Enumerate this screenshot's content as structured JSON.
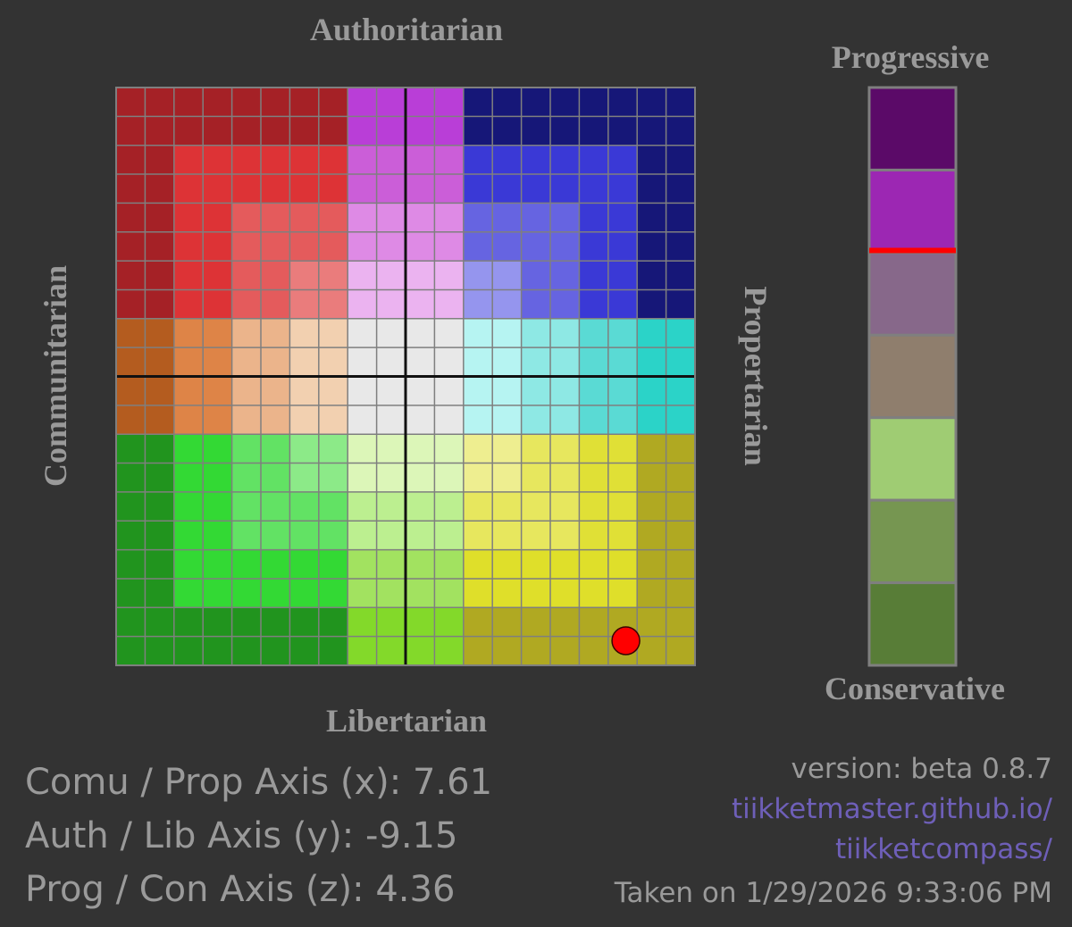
{
  "labels": {
    "top": "Authoritarian",
    "bottom": "Libertarian",
    "left": "Communitarian",
    "right": "Propertarian",
    "scale_top": "Progressive",
    "scale_bottom": "Conservative"
  },
  "chart_data": [
    {
      "type": "scatter",
      "title": "",
      "xlabel_left": "Communitarian",
      "xlabel_right": "Propertarian",
      "ylabel_top": "Authoritarian",
      "ylabel_bottom": "Libertarian",
      "xlim": [
        -10,
        10
      ],
      "ylim": [
        -10,
        10
      ],
      "grid": true,
      "grid_divisions": 20,
      "point": {
        "x": 7.61,
        "y": -9.15,
        "color": "#ff0000"
      },
      "zone_colors": [
        [
          "#a52126",
          "#a52126",
          "#a52126",
          "#a52126",
          "#a52126",
          "#a52126",
          "#a52126",
          "#a52126",
          "#b93ed7",
          "#b93ed7",
          "#b93ed7",
          "#b93ed7",
          "#161778",
          "#161778",
          "#161778",
          "#161778",
          "#161778",
          "#161778",
          "#161778",
          "#161778"
        ],
        [
          "#a52126",
          "#a52126",
          "#a52126",
          "#a52126",
          "#a52126",
          "#a52126",
          "#a52126",
          "#a52126",
          "#b93ed7",
          "#b93ed7",
          "#b93ed7",
          "#b93ed7",
          "#161778",
          "#161778",
          "#161778",
          "#161778",
          "#161778",
          "#161778",
          "#161778",
          "#161778"
        ],
        [
          "#a52126",
          "#a52126",
          "#dd3336",
          "#dd3336",
          "#dd3336",
          "#dd3336",
          "#dd3336",
          "#dd3336",
          "#cb5ed8",
          "#cb5ed8",
          "#cb5ed8",
          "#cb5ed8",
          "#3a39d6",
          "#3a39d6",
          "#3a39d6",
          "#3a39d6",
          "#3a39d6",
          "#3a39d6",
          "#161778",
          "#161778"
        ],
        [
          "#a52126",
          "#a52126",
          "#dd3336",
          "#dd3336",
          "#dd3336",
          "#dd3336",
          "#dd3336",
          "#dd3336",
          "#cb5ed8",
          "#cb5ed8",
          "#cb5ed8",
          "#cb5ed8",
          "#3a39d6",
          "#3a39d6",
          "#3a39d6",
          "#3a39d6",
          "#3a39d6",
          "#3a39d6",
          "#161778",
          "#161778"
        ],
        [
          "#a52126",
          "#a52126",
          "#dd3336",
          "#dd3336",
          "#e45b5c",
          "#e45b5c",
          "#e45b5c",
          "#e45b5c",
          "#de8ae5",
          "#de8ae5",
          "#de8ae5",
          "#de8ae5",
          "#6664e1",
          "#6664e1",
          "#6664e1",
          "#6664e1",
          "#3a39d6",
          "#3a39d6",
          "#161778",
          "#161778"
        ],
        [
          "#a52126",
          "#a52126",
          "#dd3336",
          "#dd3336",
          "#e45b5c",
          "#e45b5c",
          "#e45b5c",
          "#e45b5c",
          "#de8ae5",
          "#de8ae5",
          "#de8ae5",
          "#de8ae5",
          "#6664e1",
          "#6664e1",
          "#6664e1",
          "#6664e1",
          "#3a39d6",
          "#3a39d6",
          "#161778",
          "#161778"
        ],
        [
          "#a52126",
          "#a52126",
          "#dd3336",
          "#dd3336",
          "#e45b5c",
          "#e45b5c",
          "#ea7c7c",
          "#ea7c7c",
          "#ebb3f0",
          "#ebb3f0",
          "#ebb3f0",
          "#ebb3f0",
          "#9595ee",
          "#9595ee",
          "#6664e1",
          "#6664e1",
          "#3a39d6",
          "#3a39d6",
          "#161778",
          "#161778"
        ],
        [
          "#a52126",
          "#a52126",
          "#dd3336",
          "#dd3336",
          "#e45b5c",
          "#e45b5c",
          "#ea7c7c",
          "#ea7c7c",
          "#ebb3f0",
          "#ebb3f0",
          "#ebb3f0",
          "#ebb3f0",
          "#9595ee",
          "#9595ee",
          "#6664e1",
          "#6664e1",
          "#3a39d6",
          "#3a39d6",
          "#161778",
          "#161778"
        ],
        [
          "#b45c1f",
          "#b45c1f",
          "#de8447",
          "#de8447",
          "#ebb48b",
          "#ebb48b",
          "#f2d0b0",
          "#f2d0b0",
          "#e8e8e8",
          "#e8e8e8",
          "#e8e8e8",
          "#e8e8e8",
          "#b6f4f2",
          "#b6f4f2",
          "#8ee8e4",
          "#8ee8e4",
          "#5adad4",
          "#5adad4",
          "#2bd3c8",
          "#2bd3c8"
        ],
        [
          "#b45c1f",
          "#b45c1f",
          "#de8447",
          "#de8447",
          "#ebb48b",
          "#ebb48b",
          "#f2d0b0",
          "#f2d0b0",
          "#e8e8e8",
          "#e8e8e8",
          "#e8e8e8",
          "#e8e8e8",
          "#b6f4f2",
          "#b6f4f2",
          "#8ee8e4",
          "#8ee8e4",
          "#5adad4",
          "#5adad4",
          "#2bd3c8",
          "#2bd3c8"
        ],
        [
          "#b45c1f",
          "#b45c1f",
          "#de8447",
          "#de8447",
          "#ebb48b",
          "#ebb48b",
          "#f2d0b0",
          "#f2d0b0",
          "#e8e8e8",
          "#e8e8e8",
          "#e8e8e8",
          "#e8e8e8",
          "#b6f4f2",
          "#b6f4f2",
          "#8ee8e4",
          "#8ee8e4",
          "#5adad4",
          "#5adad4",
          "#2bd3c8",
          "#2bd3c8"
        ],
        [
          "#b45c1f",
          "#b45c1f",
          "#de8447",
          "#de8447",
          "#ebb48b",
          "#ebb48b",
          "#f2d0b0",
          "#f2d0b0",
          "#e8e8e8",
          "#e8e8e8",
          "#e8e8e8",
          "#e8e8e8",
          "#b6f4f2",
          "#b6f4f2",
          "#8ee8e4",
          "#8ee8e4",
          "#5adad4",
          "#5adad4",
          "#2bd3c8",
          "#2bd3c8"
        ],
        [
          "#21941e",
          "#21941e",
          "#33d934",
          "#33d934",
          "#62e264",
          "#62e264",
          "#8cea88",
          "#8cea88",
          "#dcf6b8",
          "#dcf6b8",
          "#dcf6b8",
          "#dcf6b8",
          "#eeee90",
          "#eeee90",
          "#e7e75e",
          "#e7e75e",
          "#e0e036",
          "#e0e036",
          "#b0a922",
          "#b0a922"
        ],
        [
          "#21941e",
          "#21941e",
          "#33d934",
          "#33d934",
          "#62e264",
          "#62e264",
          "#8cea88",
          "#8cea88",
          "#dcf6b8",
          "#dcf6b8",
          "#dcf6b8",
          "#dcf6b8",
          "#eeee90",
          "#eeee90",
          "#e7e75e",
          "#e7e75e",
          "#e0e036",
          "#e0e036",
          "#b0a922",
          "#b0a922"
        ],
        [
          "#21941e",
          "#21941e",
          "#33d934",
          "#33d934",
          "#62e264",
          "#62e264",
          "#62e264",
          "#62e264",
          "#bcef90",
          "#bcef90",
          "#bcef90",
          "#bcef90",
          "#e7e75e",
          "#e7e75e",
          "#e7e75e",
          "#e7e75e",
          "#e0e036",
          "#e0e036",
          "#b0a922",
          "#b0a922"
        ],
        [
          "#21941e",
          "#21941e",
          "#33d934",
          "#33d934",
          "#62e264",
          "#62e264",
          "#62e264",
          "#62e264",
          "#bcef90",
          "#bcef90",
          "#bcef90",
          "#bcef90",
          "#e7e75e",
          "#e7e75e",
          "#e7e75e",
          "#e7e75e",
          "#e0e036",
          "#e0e036",
          "#b0a922",
          "#b0a922"
        ],
        [
          "#21941e",
          "#21941e",
          "#33d934",
          "#33d934",
          "#33d934",
          "#33d934",
          "#33d934",
          "#33d934",
          "#a2e260",
          "#a2e260",
          "#a2e260",
          "#a2e260",
          "#dfdf2a",
          "#dfdf2a",
          "#dfdf2a",
          "#dfdf2a",
          "#dfdf2a",
          "#dfdf2a",
          "#b0a922",
          "#b0a922"
        ],
        [
          "#21941e",
          "#21941e",
          "#33d934",
          "#33d934",
          "#33d934",
          "#33d934",
          "#33d934",
          "#33d934",
          "#a2e260",
          "#a2e260",
          "#a2e260",
          "#a2e260",
          "#dfdf2a",
          "#dfdf2a",
          "#dfdf2a",
          "#dfdf2a",
          "#dfdf2a",
          "#dfdf2a",
          "#b0a922",
          "#b0a922"
        ],
        [
          "#21941e",
          "#21941e",
          "#21941e",
          "#21941e",
          "#21941e",
          "#21941e",
          "#21941e",
          "#21941e",
          "#83d92a",
          "#83d92a",
          "#83d92a",
          "#83d92a",
          "#b0a922",
          "#b0a922",
          "#b0a922",
          "#b0a922",
          "#b0a922",
          "#b0a922",
          "#b0a922",
          "#b0a922"
        ],
        [
          "#21941e",
          "#21941e",
          "#21941e",
          "#21941e",
          "#21941e",
          "#21941e",
          "#21941e",
          "#21941e",
          "#83d92a",
          "#83d92a",
          "#83d92a",
          "#83d92a",
          "#b0a922",
          "#b0a922",
          "#b0a922",
          "#b0a922",
          "#b0a922",
          "#b0a922",
          "#b0a922",
          "#b0a922"
        ]
      ]
    },
    {
      "type": "scale",
      "title": "",
      "ylabel_top": "Progressive",
      "ylabel_bottom": "Conservative",
      "ylim": [
        -10,
        10
      ],
      "marker_value": 4.36,
      "marker_color": "#ff0000",
      "segment_colors": [
        "#5b0a68",
        "#9c27b3",
        "#87688a",
        "#8f7e6d",
        "#9fcc73",
        "#769651",
        "#587d37"
      ]
    }
  ],
  "stats": {
    "x_line": "Comu / Prop Axis (x): 7.61",
    "y_line": "Auth / Lib Axis (y): -9.15",
    "z_line": "Prog / Con Axis (z): 4.36"
  },
  "meta": {
    "version": "version: beta 0.8.7",
    "link_line1": "tiikketmaster.github.io/",
    "link_line2": "tiikketcompass/",
    "taken": "Taken on 1/29/2026 9:33:06 PM"
  }
}
